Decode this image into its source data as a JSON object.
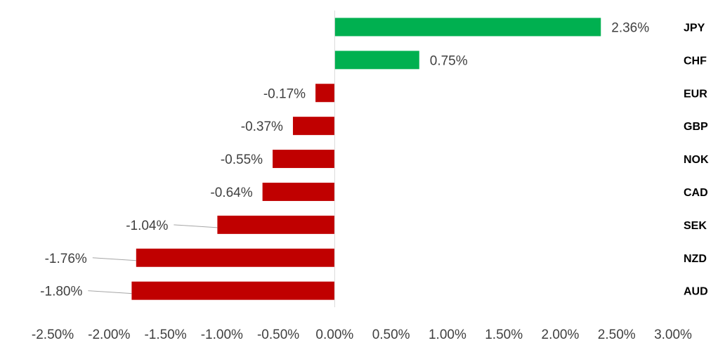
{
  "chart_data": {
    "type": "bar",
    "orientation": "horizontal",
    "categories": [
      "JPY",
      "CHF",
      "EUR",
      "GBP",
      "NOK",
      "CAD",
      "SEK",
      "NZD",
      "AUD"
    ],
    "values": [
      2.36,
      0.75,
      -0.17,
      -0.37,
      -0.55,
      -0.64,
      -1.04,
      -1.76,
      -1.8
    ],
    "data_labels": [
      "2.36%",
      "0.75%",
      "-0.17%",
      "-0.37%",
      "-0.55%",
      "-0.64%",
      "-1.04%",
      "-1.76%",
      "-1.80%"
    ],
    "x_ticks": [
      "-2.50%",
      "-2.00%",
      "-1.50%",
      "-1.00%",
      "-0.50%",
      "0.00%",
      "0.50%",
      "1.00%",
      "1.50%",
      "2.00%",
      "2.50%",
      "3.00%"
    ],
    "xlim": [
      -2.5,
      3.0
    ],
    "title": "",
    "xlabel": "",
    "ylabel": "",
    "category_axis_position": "right",
    "grid": false,
    "legend": false,
    "colors": {
      "positive": "#00b050",
      "negative": "#c00000",
      "axis": "#d9d9d9",
      "text": "#404040"
    }
  }
}
